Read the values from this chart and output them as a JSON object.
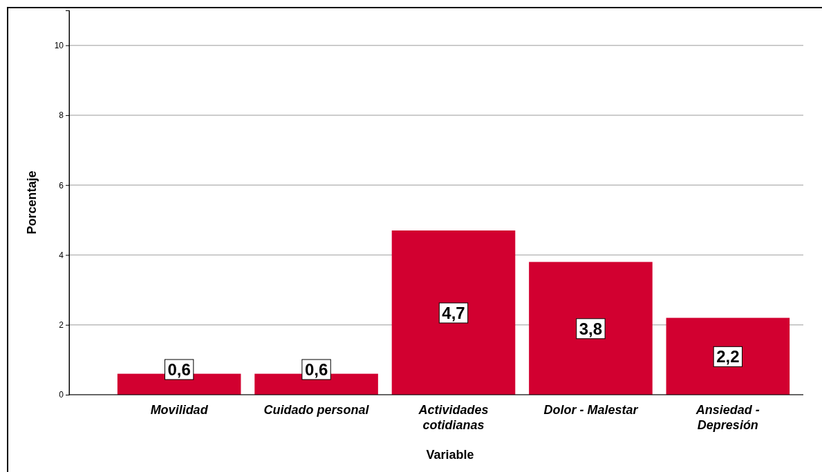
{
  "chart_data": {
    "type": "bar",
    "xlabel": "Variable",
    "ylabel": "Porcentaje",
    "categories": [
      "Movilidad",
      "Cuidado personal",
      "Actividades cotidianas",
      "Dolor - Malestar",
      "Ansiedad - Depresión"
    ],
    "values": [
      0.6,
      0.6,
      4.7,
      3.8,
      2.2
    ],
    "value_labels": [
      "0,6",
      "0,6",
      "4,7",
      "3,8",
      "2,2"
    ],
    "color": "#d20030",
    "ylim": [
      0,
      11
    ],
    "yticks": [
      0,
      2,
      4,
      6,
      8,
      10
    ],
    "grid": "y"
  }
}
